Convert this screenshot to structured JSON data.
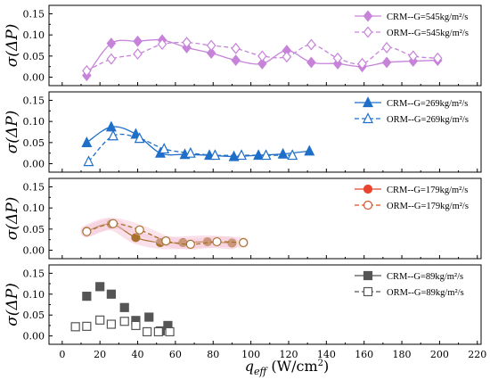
{
  "chart_data": [
    {
      "type": "scatter",
      "ylabel": "σ(ΔP)",
      "ylim": [
        -0.02,
        0.17
      ],
      "yticks": [
        "0.00",
        "0.05",
        "0.10",
        "0.15"
      ],
      "legend_position": "top-right",
      "shading": "none",
      "colors": {
        "CRM": "#c683d9",
        "ORM": "#c683d9"
      },
      "series": [
        {
          "name": "CRM--G=545kg/m²/s",
          "marker": "diamond-filled",
          "line": "solid",
          "style": "smooth",
          "x": [
            13,
            26,
            40,
            53,
            66,
            79,
            92,
            106,
            119,
            132,
            146,
            159,
            172,
            186,
            199
          ],
          "y": [
            0.004,
            0.08,
            0.085,
            0.088,
            0.07,
            0.057,
            0.04,
            0.032,
            0.063,
            0.035,
            0.032,
            0.025,
            0.035,
            0.038,
            0.04
          ]
        },
        {
          "name": "ORM--G=545kg/m²/s",
          "marker": "diamond-open",
          "line": "dashed",
          "style": "smooth",
          "x": [
            13,
            26,
            40,
            53,
            66,
            79,
            92,
            106,
            119,
            132,
            146,
            159,
            172,
            186,
            199
          ],
          "y": [
            0.015,
            0.043,
            0.055,
            0.078,
            0.082,
            0.075,
            0.068,
            0.05,
            0.048,
            0.077,
            0.045,
            0.032,
            0.07,
            0.05,
            0.045
          ]
        }
      ]
    },
    {
      "type": "scatter",
      "ylabel": "σ(ΔP)",
      "ylim": [
        -0.02,
        0.17
      ],
      "yticks": [
        "0.00",
        "0.05",
        "0.10",
        "0.15"
      ],
      "legend_position": "top-right",
      "shading": "none",
      "colors": {
        "CRM": "#1f6fc9",
        "ORM": "#1f6fc9"
      },
      "series": [
        {
          "name": "CRM--G=269kg/m²/s",
          "marker": "triangle-filled",
          "line": "solid",
          "style": "smooth",
          "x": [
            13,
            26,
            39,
            52,
            65,
            78,
            91,
            104,
            117,
            131
          ],
          "y": [
            0.05,
            0.087,
            0.07,
            0.025,
            0.022,
            0.02,
            0.017,
            0.02,
            0.023,
            0.03
          ]
        },
        {
          "name": "ORM--G=269kg/m²/s",
          "marker": "triangle-open",
          "line": "dashed",
          "style": "smooth",
          "x": [
            14,
            27,
            41,
            54,
            68,
            81,
            95,
            108,
            122
          ],
          "y": [
            0.005,
            0.066,
            0.06,
            0.035,
            0.025,
            0.02,
            0.02,
            0.02,
            0.02
          ]
        }
      ]
    },
    {
      "type": "scatter",
      "ylabel": "σ(ΔP)",
      "ylim": [
        -0.02,
        0.17
      ],
      "yticks": [
        "0.00",
        "0.05",
        "0.10",
        "0.15"
      ],
      "legend_position": "top-right",
      "shading": "pink",
      "colors": {
        "CRM": "#e8452f",
        "ORM": "#d2552c",
        "line": "#a9712e",
        "band": "#f5c6d8"
      },
      "series": [
        {
          "name": "CRM--G=179kg/m²/s",
          "marker": "circle-filled",
          "line": "solid",
          "style": "smooth",
          "x": [
            13,
            26,
            39,
            52,
            64,
            77,
            90
          ],
          "y": [
            0.045,
            0.062,
            0.03,
            0.018,
            0.018,
            0.02,
            0.017
          ]
        },
        {
          "name": "ORM--G=179kg/m²/s",
          "marker": "circle-open",
          "line": "dashed",
          "style": "smooth",
          "x": [
            13,
            27,
            41,
            55,
            68,
            82,
            96
          ],
          "y": [
            0.044,
            0.063,
            0.048,
            0.022,
            0.014,
            0.02,
            0.018
          ]
        }
      ]
    },
    {
      "type": "scatter",
      "ylabel": "σ(ΔP)",
      "ylim": [
        -0.02,
        0.17
      ],
      "yticks": [
        "0.00",
        "0.05",
        "0.10",
        "0.15"
      ],
      "legend_position": "top-right",
      "shading": "none",
      "colors": {
        "CRM": "#555555",
        "ORM": "#555555"
      },
      "xlabel": "q_eff (W/cm²)",
      "xlim": [
        -7,
        222
      ],
      "xticks": [
        "0",
        "20",
        "40",
        "60",
        "80",
        "100",
        "120",
        "140",
        "160",
        "180",
        "200",
        "220"
      ],
      "series": [
        {
          "name": "CRM--G=89kg/m²/s",
          "marker": "square-filled",
          "line": "none",
          "x": [
            13,
            20,
            26,
            33,
            39,
            46,
            52,
            56
          ],
          "y": [
            0.095,
            0.118,
            0.1,
            0.068,
            0.037,
            0.045,
            0.012,
            0.025
          ]
        },
        {
          "name": "ORM--G=89kg/m²/s",
          "marker": "square-open",
          "line": "none",
          "x": [
            7,
            13,
            20,
            26,
            33,
            39,
            45,
            51,
            57
          ],
          "y": [
            0.022,
            0.023,
            0.038,
            0.028,
            0.035,
            0.025,
            0.01,
            0.01,
            0.01
          ]
        }
      ]
    }
  ],
  "xaxis": {
    "label_main": "q",
    "label_sub": "eff",
    "label_unit": " (W/cm",
    "label_sup": "2",
    "label_close": ")"
  }
}
